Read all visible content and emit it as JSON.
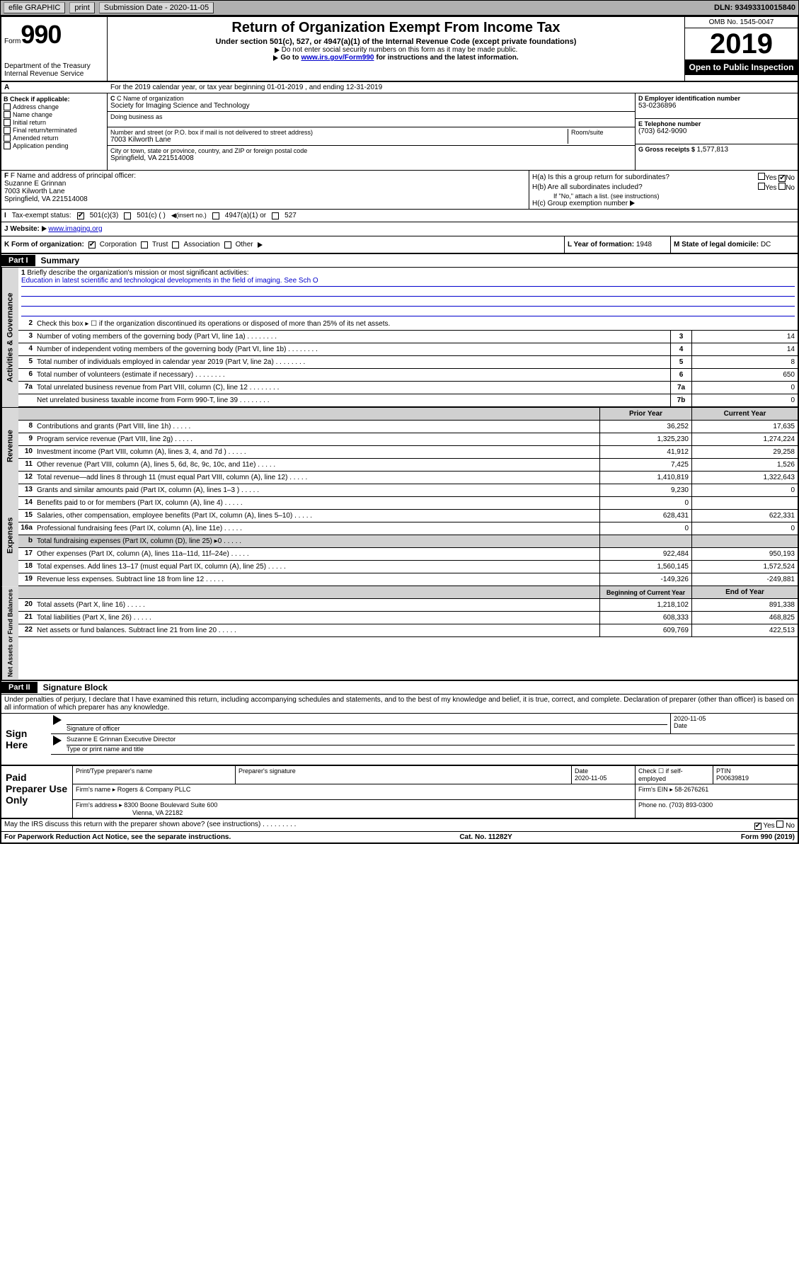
{
  "toolbar": {
    "efile": "efile GRAPHIC",
    "print": "print",
    "submission_label": "Submission Date - 2020-11-05",
    "dln": "DLN: 93493310015840"
  },
  "header": {
    "form_label": "Form",
    "form_number": "990",
    "dept": "Department of the Treasury\nInternal Revenue Service",
    "title": "Return of Organization Exempt From Income Tax",
    "subtitle1": "Under section 501(c), 527, or 4947(a)(1) of the Internal Revenue Code (except private foundations)",
    "subtitle2": "Do not enter social security numbers on this form as it may be made public.",
    "subtitle3a": "Go to ",
    "subtitle3_link": "www.irs.gov/Form990",
    "subtitle3b": " for instructions and the latest information.",
    "omb": "OMB No. 1545-0047",
    "year": "2019",
    "open_public": "Open to Public Inspection"
  },
  "period": {
    "a_label": "A",
    "text": "For the 2019 calendar year, or tax year beginning 01-01-2019   , and ending 12-31-2019"
  },
  "section_b": {
    "label": "B Check if applicable:",
    "items": [
      "Address change",
      "Name change",
      "Initial return",
      "Final return/terminated",
      "Amended return",
      "Application pending"
    ]
  },
  "section_c": {
    "name_label": "C Name of organization",
    "org_name": "Society for Imaging Science and Technology",
    "dba_label": "Doing business as",
    "addr_label": "Number and street (or P.O. box if mail is not delivered to street address)",
    "room_label": "Room/suite",
    "street": "7003 Kilworth Lane",
    "city_label": "City or town, state or province, country, and ZIP or foreign postal code",
    "city": "Springfield, VA  221514008"
  },
  "section_d": {
    "label": "D Employer identification number",
    "value": "53-0236896"
  },
  "section_e": {
    "label": "E Telephone number",
    "value": "(703) 642-9090"
  },
  "section_g": {
    "label": "G Gross receipts $ ",
    "value": "1,577,813"
  },
  "section_f": {
    "label": "F  Name and address of principal officer:",
    "name": "Suzanne E Grinnan",
    "addr1": "7003 Kilworth Lane",
    "addr2": "Springfield, VA  221514008"
  },
  "section_h": {
    "ha_label": "H(a)  Is this a group return for subordinates?",
    "hb_label": "H(b)  Are all subordinates included?",
    "hb_note": "If \"No,\" attach a list. (see instructions)",
    "hc_label": "H(c)  Group exemption number",
    "yes": "Yes",
    "no": "No"
  },
  "section_i": {
    "label": "Tax-exempt status:",
    "opt1": "501(c)(3)",
    "opt2": "501(c) (   )",
    "opt2_note": "(insert no.)",
    "opt3": "4947(a)(1) or",
    "opt4": "527"
  },
  "section_j": {
    "label": "J  Website:",
    "value": "www.imaging.org"
  },
  "section_k": {
    "label": "K Form of organization:",
    "opts": [
      "Corporation",
      "Trust",
      "Association",
      "Other"
    ]
  },
  "section_l": {
    "label": "L Year of formation: ",
    "value": "1948"
  },
  "section_m": {
    "label": "M State of legal domicile: ",
    "value": "DC"
  },
  "part1": {
    "tag": "Part I",
    "title": "Summary",
    "side_gov": "Activities & Governance",
    "side_rev": "Revenue",
    "side_exp": "Expenses",
    "side_net": "Net Assets or Fund Balances",
    "line1_label": "Briefly describe the organization's mission or most significant activities:",
    "line1_value": "Education in latest scientific and technological developments in the field of imaging. See Sch O",
    "line2": "Check this box ▸ ☐  if the organization discontinued its operations or disposed of more than 25% of its net assets.",
    "prior_year": "Prior Year",
    "current_year": "Current Year",
    "beg_year": "Beginning of Current Year",
    "end_year": "End of Year",
    "lines_single": [
      {
        "n": "3",
        "d": "Number of voting members of the governing body (Part VI, line 1a)",
        "b": "3",
        "v": "14"
      },
      {
        "n": "4",
        "d": "Number of independent voting members of the governing body (Part VI, line 1b)",
        "b": "4",
        "v": "14"
      },
      {
        "n": "5",
        "d": "Total number of individuals employed in calendar year 2019 (Part V, line 2a)",
        "b": "5",
        "v": "8"
      },
      {
        "n": "6",
        "d": "Total number of volunteers (estimate if necessary)",
        "b": "6",
        "v": "650"
      },
      {
        "n": "7a",
        "d": "Total unrelated business revenue from Part VIII, column (C), line 12",
        "b": "7a",
        "v": "0"
      },
      {
        "n": "",
        "d": "Net unrelated business taxable income from Form 990-T, line 39",
        "b": "7b",
        "v": "0"
      }
    ],
    "lines_rev": [
      {
        "n": "8",
        "d": "Contributions and grants (Part VIII, line 1h)",
        "p": "36,252",
        "c": "17,635"
      },
      {
        "n": "9",
        "d": "Program service revenue (Part VIII, line 2g)",
        "p": "1,325,230",
        "c": "1,274,224"
      },
      {
        "n": "10",
        "d": "Investment income (Part VIII, column (A), lines 3, 4, and 7d )",
        "p": "41,912",
        "c": "29,258"
      },
      {
        "n": "11",
        "d": "Other revenue (Part VIII, column (A), lines 5, 6d, 8c, 9c, 10c, and 11e)",
        "p": "7,425",
        "c": "1,526"
      },
      {
        "n": "12",
        "d": "Total revenue—add lines 8 through 11 (must equal Part VIII, column (A), line 12)",
        "p": "1,410,819",
        "c": "1,322,643"
      }
    ],
    "lines_exp": [
      {
        "n": "13",
        "d": "Grants and similar amounts paid (Part IX, column (A), lines 1–3 )",
        "p": "9,230",
        "c": "0"
      },
      {
        "n": "14",
        "d": "Benefits paid to or for members (Part IX, column (A), line 4)",
        "p": "0",
        "c": ""
      },
      {
        "n": "15",
        "d": "Salaries, other compensation, employee benefits (Part IX, column (A), lines 5–10)",
        "p": "628,431",
        "c": "622,331"
      },
      {
        "n": "16a",
        "d": "Professional fundraising fees (Part IX, column (A), line 11e)",
        "p": "0",
        "c": "0"
      },
      {
        "n": "b",
        "d": "Total fundraising expenses (Part IX, column (D), line 25) ▸0",
        "p": "",
        "c": "",
        "shade": true
      },
      {
        "n": "17",
        "d": "Other expenses (Part IX, column (A), lines 11a–11d, 11f–24e)",
        "p": "922,484",
        "c": "950,193"
      },
      {
        "n": "18",
        "d": "Total expenses. Add lines 13–17 (must equal Part IX, column (A), line 25)",
        "p": "1,560,145",
        "c": "1,572,524"
      },
      {
        "n": "19",
        "d": "Revenue less expenses. Subtract line 18 from line 12",
        "p": "-149,326",
        "c": "-249,881"
      }
    ],
    "lines_net": [
      {
        "n": "20",
        "d": "Total assets (Part X, line 16)",
        "p": "1,218,102",
        "c": "891,338"
      },
      {
        "n": "21",
        "d": "Total liabilities (Part X, line 26)",
        "p": "608,333",
        "c": "468,825"
      },
      {
        "n": "22",
        "d": "Net assets or fund balances. Subtract line 21 from line 20",
        "p": "609,769",
        "c": "422,513"
      }
    ]
  },
  "part2": {
    "tag": "Part II",
    "title": "Signature Block",
    "perjury": "Under penalties of perjury, I declare that I have examined this return, including accompanying schedules and statements, and to the best of my knowledge and belief, it is true, correct, and complete. Declaration of preparer (other than officer) is based on all information of which preparer has any knowledge.",
    "sign_here": "Sign Here",
    "sig_officer": "Signature of officer",
    "date": "Date",
    "sig_date": "2020-11-05",
    "type_name_label": "Type or print name and title",
    "type_name": "Suzanne E Grinnan  Executive Director",
    "paid": "Paid Preparer Use Only",
    "prep_name_label": "Print/Type preparer's name",
    "prep_sig_label": "Preparer's signature",
    "prep_date_label": "Date",
    "prep_date": "2020-11-05",
    "prep_check_label": "Check ☐ if self-employed",
    "ptin_label": "PTIN",
    "ptin": "P00639819",
    "firm_name_label": "Firm's name   ▸",
    "firm_name": "Rogers & Company PLLC",
    "firm_ein_label": "Firm's EIN ▸",
    "firm_ein": "58-2676261",
    "firm_addr_label": "Firm's address ▸",
    "firm_addr1": "8300 Boone Boulevard Suite 600",
    "firm_addr2": "Vienna, VA  22182",
    "phone_label": "Phone no. ",
    "phone": "(703) 893-0300",
    "discuss": "May the IRS discuss this return with the preparer shown above? (see instructions)",
    "yes": "Yes",
    "no": "No"
  },
  "footer": {
    "paperwork": "For Paperwork Reduction Act Notice, see the separate instructions.",
    "cat": "Cat. No. 11282Y",
    "form": "Form 990 (2019)"
  }
}
